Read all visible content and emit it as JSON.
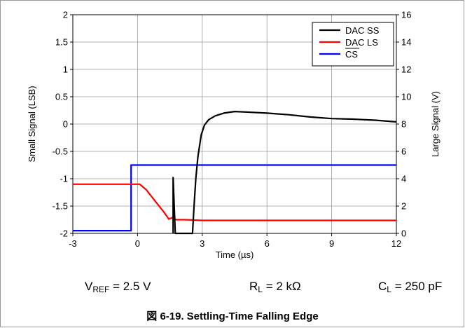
{
  "chart_data": {
    "type": "line",
    "xlabel": "Time (µs)",
    "ylabel_left": "Small Signal (LSB)",
    "ylabel_right": "Large Signal (V)",
    "xlim": [
      -3,
      12
    ],
    "ylim_left": [
      -2,
      2
    ],
    "ylim_right": [
      0,
      16
    ],
    "x_ticks": [
      "-3",
      "0",
      "3",
      "6",
      "9",
      "12"
    ],
    "y_left_ticks": [
      "2",
      "1.5",
      "1",
      "0.5",
      "0",
      "-0.5",
      "-1",
      "-1.5",
      "-2"
    ],
    "y_right_ticks": [
      "16",
      "14",
      "12",
      "10",
      "8",
      "6",
      "4",
      "2",
      "0"
    ],
    "grid": true,
    "legend_position": "top-right",
    "series": [
      {
        "name": "DAC SS",
        "axis": "left",
        "color": "#000000",
        "points": [
          [
            1.65,
            -2.0
          ],
          [
            1.65,
            -0.98
          ],
          [
            1.75,
            -2.0
          ],
          [
            2.55,
            -2.0
          ],
          [
            2.62,
            -1.5
          ],
          [
            2.7,
            -1.0
          ],
          [
            2.8,
            -0.6
          ],
          [
            2.95,
            -0.2
          ],
          [
            3.1,
            -0.02
          ],
          [
            3.3,
            0.08
          ],
          [
            3.6,
            0.15
          ],
          [
            4.0,
            0.2
          ],
          [
            4.5,
            0.23
          ],
          [
            5.0,
            0.22
          ],
          [
            6.0,
            0.2
          ],
          [
            7.0,
            0.17
          ],
          [
            8.0,
            0.13
          ],
          [
            9.0,
            0.1
          ],
          [
            10.0,
            0.09
          ],
          [
            11.0,
            0.07
          ],
          [
            12.0,
            0.04
          ]
        ]
      },
      {
        "name": "DAC LS",
        "axis": "right",
        "color": "#ff0000",
        "points": [
          [
            -3.0,
            3.6
          ],
          [
            0.1,
            3.6
          ],
          [
            0.4,
            3.2
          ],
          [
            0.8,
            2.4
          ],
          [
            1.2,
            1.6
          ],
          [
            1.45,
            1.05
          ],
          [
            1.6,
            1.15
          ],
          [
            1.8,
            1.0
          ],
          [
            2.2,
            1.0
          ],
          [
            3.0,
            0.95
          ],
          [
            12.0,
            0.95
          ]
        ]
      },
      {
        "name": "CS",
        "axis": "right",
        "color": "#0000ff",
        "points": [
          [
            -3.0,
            0.2
          ],
          [
            -0.3,
            0.2
          ],
          [
            -0.3,
            5.0
          ],
          [
            12.0,
            5.0
          ]
        ]
      }
    ]
  },
  "conditions": {
    "vref": {
      "main": "V",
      "sub": "REF",
      "rest": " = 2.5 V"
    },
    "rl": {
      "main": "R",
      "sub": "L",
      "rest": " = 2 kΩ"
    },
    "cl": {
      "main": "C",
      "sub": "L",
      "rest": " = 250 pF"
    }
  },
  "caption": {
    "label": "図 6-19.",
    "text": "Settling-Time Falling Edge"
  }
}
